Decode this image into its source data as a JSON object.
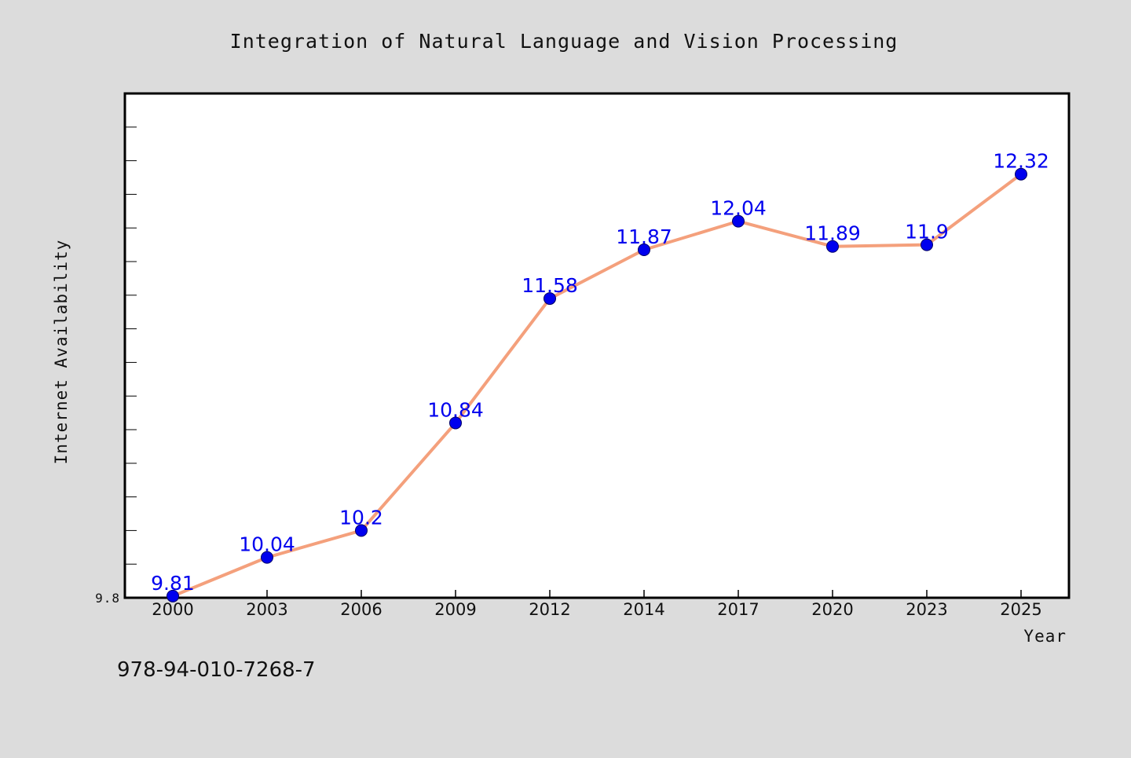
{
  "chart_data": {
    "type": "line",
    "title": "Integration of Natural Language and Vision Processing",
    "xlabel": "Year",
    "ylabel": "Internet Availability",
    "categories": [
      "2000",
      "2003",
      "2006",
      "2009",
      "2012",
      "2014",
      "2017",
      "2020",
      "2023",
      "2025"
    ],
    "series": [
      {
        "values": [
          9.81,
          10.04,
          10.2,
          10.84,
          11.58,
          11.87,
          12.04,
          11.89,
          11.9,
          12.32
        ],
        "labels": [
          "9.81",
          "10.04",
          "10.2",
          "10.84",
          "11.58",
          "11.87",
          "12.04",
          "11.89",
          "11.9",
          "12.32"
        ]
      }
    ],
    "yticks": [
      "9.8"
    ],
    "ylim": [
      9.8,
      12.8
    ],
    "grid": false,
    "line_color": "#f4a07c",
    "marker_color": "#0000ee",
    "label_color": "#0000ee"
  },
  "footer": {
    "isbn": "978-94-010-7268-7"
  }
}
